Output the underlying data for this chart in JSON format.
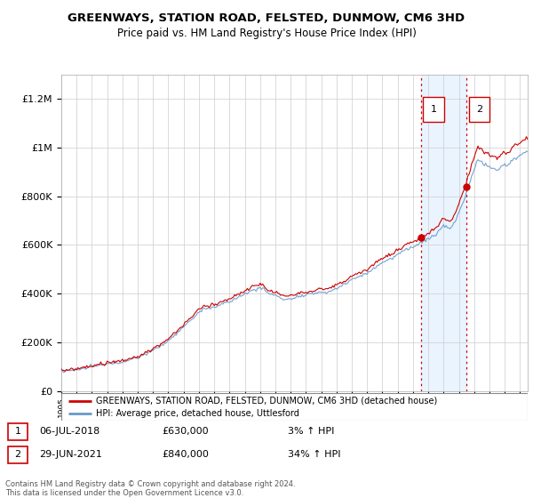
{
  "title": "GREENWAYS, STATION ROAD, FELSTED, DUNMOW, CM6 3HD",
  "subtitle": "Price paid vs. HM Land Registry's House Price Index (HPI)",
  "xlim_start": 1995.0,
  "xlim_end": 2025.5,
  "ylim": [
    0,
    1300000
  ],
  "yticks": [
    0,
    200000,
    400000,
    600000,
    800000,
    1000000,
    1200000
  ],
  "ytick_labels": [
    "£0",
    "£200K",
    "£400K",
    "£600K",
    "£800K",
    "£1M",
    "£1.2M"
  ],
  "sale1_date": 2018.51,
  "sale1_price": 630000,
  "sale1_label": "1",
  "sale2_date": 2021.49,
  "sale2_price": 840000,
  "sale2_label": "2",
  "legend_line1": "GREENWAYS, STATION ROAD, FELSTED, DUNMOW, CM6 3HD (detached house)",
  "legend_line2": "HPI: Average price, detached house, Uttlesford",
  "footer": "Contains HM Land Registry data © Crown copyright and database right 2024.\nThis data is licensed under the Open Government Licence v3.0.",
  "line_color_red": "#cc0000",
  "line_color_blue": "#6699cc",
  "shade_color": "#ddeeff",
  "grid_color": "#cccccc",
  "background_color": "#ffffff"
}
